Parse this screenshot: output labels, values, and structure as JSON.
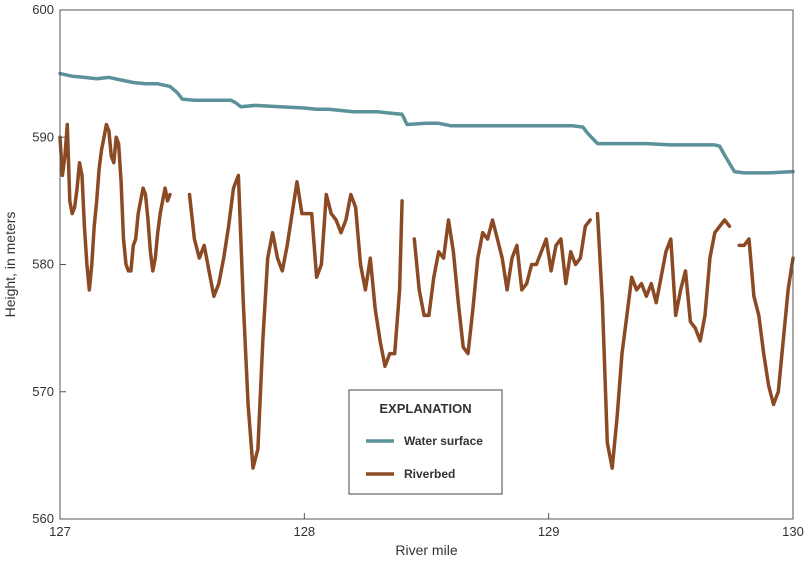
{
  "chart_data": {
    "type": "line",
    "title": "",
    "xlabel": "River mile",
    "ylabel": "Height, in meters",
    "xlim": [
      127,
      130
    ],
    "ylim": [
      560,
      600
    ],
    "xticks": [
      127,
      128,
      129,
      130
    ],
    "yticks": [
      560,
      570,
      580,
      590,
      600
    ],
    "grid": false,
    "legend": {
      "title": "EXPLANATION",
      "placement": "bottom-center"
    },
    "series": [
      {
        "name": "Water surface",
        "color": "#5b9199",
        "x": [
          127.0,
          127.05,
          127.1,
          127.15,
          127.2,
          127.25,
          127.3,
          127.35,
          127.4,
          127.45,
          127.48,
          127.5,
          127.55,
          127.6,
          127.65,
          127.7,
          127.72,
          127.74,
          127.8,
          127.9,
          128.0,
          128.05,
          128.1,
          128.2,
          128.3,
          128.35,
          128.4,
          128.42,
          128.5,
          128.55,
          128.6,
          128.7,
          128.8,
          128.9,
          129.0,
          129.05,
          129.1,
          129.14,
          129.16,
          129.2,
          129.3,
          129.4,
          129.5,
          129.6,
          129.68,
          129.7,
          129.72,
          129.76,
          129.8,
          129.9,
          130.0
        ],
        "y": [
          595.0,
          594.8,
          594.7,
          594.6,
          594.7,
          594.5,
          594.3,
          594.2,
          594.2,
          594.0,
          593.5,
          593.0,
          592.9,
          592.9,
          592.9,
          592.9,
          592.7,
          592.4,
          592.5,
          592.4,
          592.3,
          592.2,
          592.2,
          592.0,
          592.0,
          591.9,
          591.8,
          591.0,
          591.1,
          591.1,
          590.9,
          590.9,
          590.9,
          590.9,
          590.9,
          590.9,
          590.9,
          590.8,
          590.3,
          589.5,
          589.5,
          589.5,
          589.4,
          589.4,
          589.4,
          589.3,
          588.6,
          587.3,
          587.2,
          587.2,
          587.3
        ]
      },
      {
        "name": "Riverbed",
        "color": "#8b4a24",
        "segments": [
          {
            "x": [
              127.0,
              127.01,
              127.02,
              127.03,
              127.04,
              127.05,
              127.06,
              127.07,
              127.08,
              127.09,
              127.1,
              127.11,
              127.12,
              127.13,
              127.14,
              127.15,
              127.16,
              127.17,
              127.18,
              127.19,
              127.2,
              127.21,
              127.22,
              127.23,
              127.24,
              127.25,
              127.26,
              127.27,
              127.28,
              127.29,
              127.3,
              127.31,
              127.32,
              127.33,
              127.34,
              127.35,
              127.36,
              127.37,
              127.38,
              127.39,
              127.4,
              127.41,
              127.42,
              127.43,
              127.44,
              127.45
            ],
            "y": [
              590.0,
              587.0,
              588.5,
              591.0,
              585.0,
              584.0,
              584.5,
              586.0,
              588.0,
              587.0,
              583.0,
              580.0,
              578.0,
              580.0,
              583.0,
              585.0,
              587.5,
              589.0,
              590.0,
              591.0,
              590.5,
              588.5,
              588.0,
              590.0,
              589.5,
              586.5,
              582.0,
              580.0,
              579.5,
              579.5,
              581.5,
              582.0,
              584.0,
              585.0,
              586.0,
              585.5,
              583.5,
              581.0,
              579.5,
              580.5,
              582.5,
              584.0,
              585.0,
              586.0,
              585.0,
              585.5
            ]
          },
          {
            "x": [
              127.53,
              127.55,
              127.57,
              127.59,
              127.61,
              127.63,
              127.65,
              127.67,
              127.69,
              127.71,
              127.73,
              127.75,
              127.77,
              127.79,
              127.81,
              127.83,
              127.85,
              127.87,
              127.89,
              127.91,
              127.93,
              127.95,
              127.97,
              127.99,
              128.01,
              128.03,
              128.05,
              128.07,
              128.09,
              128.11,
              128.13,
              128.15,
              128.17,
              128.19,
              128.21,
              128.23,
              128.25,
              128.27,
              128.29,
              128.31,
              128.33,
              128.35,
              128.37,
              128.39,
              128.4
            ],
            "y": [
              585.5,
              582.0,
              580.5,
              581.5,
              579.5,
              577.5,
              578.5,
              580.5,
              583.0,
              586.0,
              587.0,
              577.0,
              569.0,
              564.0,
              565.5,
              574.0,
              580.5,
              582.5,
              580.5,
              579.5,
              581.5,
              584.0,
              586.5,
              584.0,
              584.0,
              584.0,
              579.0,
              580.0,
              585.5,
              584.0,
              583.5,
              582.5,
              583.5,
              585.5,
              584.5,
              580.0,
              578.0,
              580.5,
              576.5,
              574.0,
              572.0,
              573.0,
              573.0,
              578.0,
              585.0
            ]
          },
          {
            "x": [
              128.45,
              128.47,
              128.49,
              128.51,
              128.53,
              128.55,
              128.57,
              128.59,
              128.61,
              128.63,
              128.65,
              128.67,
              128.69,
              128.71,
              128.73,
              128.75,
              128.77,
              128.79,
              128.81,
              128.83,
              128.85,
              128.87,
              128.89,
              128.91,
              128.93,
              128.95,
              128.97,
              128.99,
              129.01,
              129.03,
              129.05,
              129.07,
              129.09,
              129.11,
              129.13,
              129.15,
              129.17
            ],
            "y": [
              582.0,
              578.0,
              576.0,
              576.0,
              579.0,
              581.0,
              580.5,
              583.5,
              581.0,
              577.0,
              573.5,
              573.0,
              576.5,
              580.5,
              582.5,
              582.0,
              583.5,
              582.0,
              580.5,
              578.0,
              580.5,
              581.5,
              578.0,
              578.5,
              580.0,
              580.0,
              581.0,
              582.0,
              579.5,
              581.5,
              582.0,
              578.5,
              581.0,
              580.0,
              580.5,
              583.0,
              583.5
            ]
          },
          {
            "x": [
              129.2,
              129.22,
              129.24,
              129.26,
              129.28,
              129.3,
              129.32,
              129.34,
              129.36,
              129.38,
              129.4,
              129.42,
              129.44,
              129.46,
              129.48,
              129.5,
              129.52,
              129.54,
              129.56,
              129.58,
              129.6,
              129.62,
              129.64,
              129.66,
              129.68,
              129.7,
              129.72,
              129.74
            ],
            "y": [
              584.0,
              577.0,
              566.0,
              564.0,
              568.0,
              573.0,
              576.0,
              579.0,
              578.0,
              578.5,
              577.5,
              578.5,
              577.0,
              579.0,
              581.0,
              582.0,
              576.0,
              578.0,
              579.5,
              575.5,
              575.0,
              574.0,
              576.0,
              580.5,
              582.5,
              583.0,
              583.5,
              583.0
            ]
          },
          {
            "x": [
              129.78,
              129.8,
              129.82,
              129.84,
              129.86,
              129.88,
              129.9,
              129.92,
              129.94,
              129.96,
              129.98,
              130.0
            ],
            "y": [
              581.5,
              581.5,
              582.0,
              577.5,
              576.0,
              573.0,
              570.5,
              569.0,
              570.0,
              574.0,
              578.0,
              580.5
            ]
          }
        ]
      }
    ]
  }
}
